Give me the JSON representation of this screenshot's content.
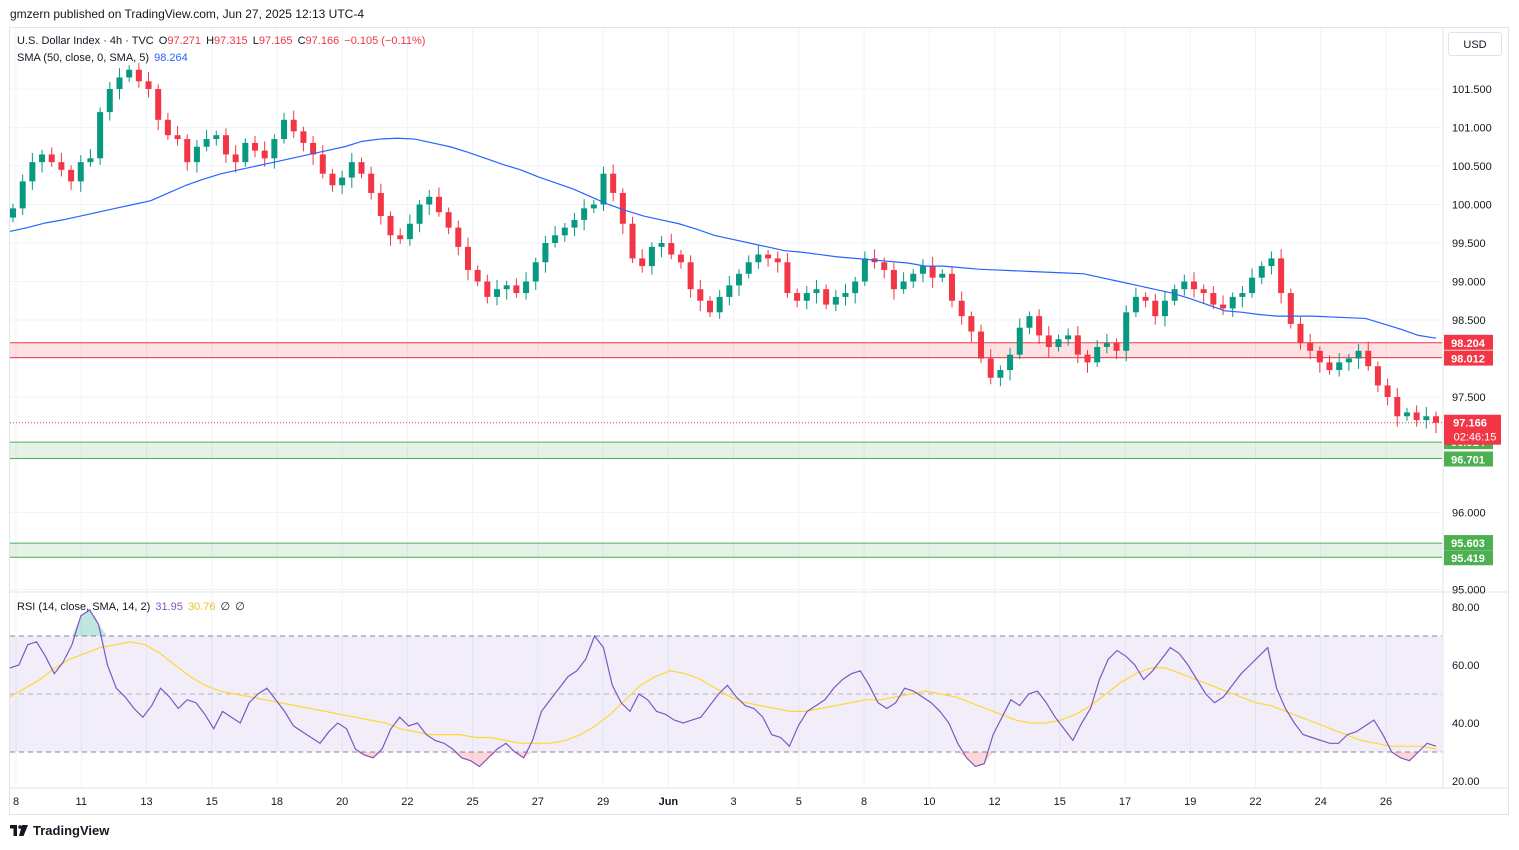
{
  "header": {
    "publisher_line": "gmzern published on TradingView.com, Jun 27, 2025 12:13 UTC-4"
  },
  "legend_main": {
    "symbol": "U.S. Dollar Index · 4h · TVC",
    "open_label": "O",
    "open": "97.271",
    "high_label": "H",
    "high": "97.315",
    "low_label": "L",
    "low": "97.165",
    "close_label": "C",
    "close": "97.166",
    "change": "−0.105 (−0.11%)"
  },
  "legend_sma": {
    "label": "SMA (50, close, 0, SMA, 5)",
    "value": "98.264"
  },
  "legend_rsi": {
    "label": "RSI (14, close, SMA, 14, 2)",
    "rsi_value": "31.95",
    "ma_value": "30.76",
    "extra1": "∅",
    "extra2": "∅"
  },
  "currency_button": "USD",
  "footer": {
    "brand": "TradingView"
  },
  "colors": {
    "up": "#089981",
    "down": "#f23645",
    "sma": "#2962ff",
    "rsi": "#7e57c2",
    "rsi_ma": "#fdd835",
    "resistance_zone": "#f23645",
    "support_zone": "#4caf50",
    "grid": "#f0f3fa"
  },
  "chart_data": [
    {
      "type": "candlestick",
      "title": "U.S. Dollar Index · 4h · TVC",
      "ylim": [
        95.0,
        101.9
      ],
      "y_ticks": [
        "101.500",
        "101.000",
        "100.500",
        "100.000",
        "99.500",
        "99.000",
        "98.500",
        "98.000",
        "97.500",
        "96.000",
        "95.000"
      ],
      "x_ticks": [
        "8",
        "11",
        "13",
        "15",
        "18",
        "20",
        "22",
        "25",
        "27",
        "29",
        "Jun",
        "3",
        "5",
        "8",
        "10",
        "12",
        "15",
        "17",
        "19",
        "22",
        "24",
        "26"
      ],
      "last_price": "97.166",
      "countdown": "02:46:15",
      "zones": [
        {
          "kind": "resistance",
          "top": 98.204,
          "bottom": 98.012,
          "top_label": "98.204",
          "bottom_label": "98.012"
        },
        {
          "kind": "support",
          "top": 96.914,
          "bottom": 96.701,
          "top_label": "96.914",
          "bottom_label": "96.701"
        },
        {
          "kind": "support",
          "top": 95.603,
          "bottom": 95.419,
          "top_label": "95.603",
          "bottom_label": "95.419"
        }
      ],
      "close_series": [
        99.95,
        100.3,
        100.55,
        100.65,
        100.55,
        100.45,
        100.3,
        100.55,
        100.6,
        101.2,
        101.5,
        101.65,
        101.75,
        101.6,
        101.5,
        101.1,
        100.9,
        100.85,
        100.55,
        100.75,
        100.85,
        100.9,
        100.65,
        100.55,
        100.8,
        100.7,
        100.6,
        100.85,
        101.1,
        100.95,
        100.8,
        100.65,
        100.4,
        100.25,
        100.35,
        100.55,
        100.4,
        100.15,
        99.85,
        99.6,
        99.55,
        99.75,
        100.0,
        100.1,
        99.9,
        99.7,
        99.45,
        99.15,
        99.0,
        98.8,
        98.9,
        98.95,
        98.85,
        99.0,
        99.25,
        99.5,
        99.6,
        99.7,
        99.8,
        99.95,
        100.0,
        100.4,
        100.15,
        99.75,
        99.3,
        99.2,
        99.45,
        99.5,
        99.35,
        99.25,
        98.9,
        98.75,
        98.6,
        98.8,
        98.95,
        99.1,
        99.25,
        99.35,
        99.3,
        99.25,
        98.85,
        98.75,
        98.85,
        98.9,
        98.7,
        98.8,
        98.85,
        99.0,
        99.3,
        99.25,
        99.15,
        98.9,
        99.0,
        99.1,
        99.2,
        99.05,
        99.1,
        98.75,
        98.55,
        98.35,
        98.0,
        97.75,
        97.85,
        98.05,
        98.4,
        98.55,
        98.3,
        98.15,
        98.25,
        98.3,
        98.05,
        97.95,
        98.15,
        98.2,
        98.1,
        98.6,
        98.8,
        98.75,
        98.55,
        98.75,
        98.9,
        99.0,
        98.9,
        98.85,
        98.7,
        98.65,
        98.8,
        98.85,
        99.05,
        99.2,
        99.3,
        98.85,
        98.45,
        98.2,
        98.1,
        97.95,
        97.85,
        97.95,
        98.0,
        98.1,
        97.9,
        97.65,
        97.5,
        97.25,
        97.3,
        97.2,
        97.25,
        97.166
      ],
      "sma_series": [
        99.65,
        99.7,
        99.76,
        99.8,
        99.85,
        99.9,
        99.95,
        100.0,
        100.05,
        100.15,
        100.25,
        100.33,
        100.4,
        100.45,
        100.5,
        100.55,
        100.6,
        100.65,
        100.7,
        100.75,
        100.82,
        100.85,
        100.86,
        100.85,
        100.8,
        100.75,
        100.68,
        100.6,
        100.52,
        100.45,
        100.36,
        100.28,
        100.2,
        100.1,
        100.0,
        99.92,
        99.85,
        99.8,
        99.75,
        99.68,
        99.6,
        99.55,
        99.5,
        99.45,
        99.4,
        99.38,
        99.35,
        99.32,
        99.3,
        99.28,
        99.26,
        99.24,
        99.2,
        99.2,
        99.18,
        99.16,
        99.15,
        99.14,
        99.13,
        99.12,
        99.11,
        99.1,
        99.05,
        99.0,
        98.95,
        98.9,
        98.85,
        98.78,
        98.7,
        98.62,
        98.6,
        98.57,
        98.55,
        98.55,
        98.55,
        98.54,
        98.53,
        98.52,
        98.45,
        98.38,
        98.3,
        98.264
      ]
    },
    {
      "type": "line",
      "title": "RSI (14, close, SMA, 14, 2)",
      "ylim": [
        20,
        80
      ],
      "y_ticks": [
        "80.00",
        "60.00",
        "40.00",
        "20.00"
      ],
      "bands": {
        "upper": 70,
        "middle": 50,
        "lower": 30
      },
      "rsi_series": [
        59,
        60,
        67,
        68,
        63,
        57,
        61,
        67,
        77,
        79,
        74,
        60,
        52,
        49,
        45,
        42,
        46,
        52,
        49,
        45,
        48,
        47,
        43,
        38,
        44,
        42,
        40,
        47,
        50,
        52,
        48,
        44,
        39,
        37,
        35,
        33,
        37,
        40,
        38,
        31,
        29,
        28,
        31,
        38,
        42,
        39,
        40,
        36,
        34,
        33,
        31,
        28,
        27,
        25,
        28,
        31,
        33,
        30,
        28,
        34,
        44,
        48,
        52,
        56,
        58,
        62,
        70,
        66,
        53,
        47,
        44,
        50,
        48,
        44,
        43,
        41,
        40,
        41,
        42,
        46,
        50,
        53,
        49,
        46,
        45,
        42,
        36,
        35,
        32,
        39,
        44,
        46,
        48,
        52,
        55,
        57,
        58,
        53,
        47,
        45,
        47,
        52,
        51,
        49,
        47,
        44,
        40,
        33,
        28,
        25,
        26,
        36,
        42,
        48,
        46,
        50,
        51,
        47,
        42,
        38,
        34,
        40,
        45,
        55,
        62,
        65,
        63,
        60,
        55,
        58,
        62,
        66,
        64,
        60,
        55,
        50,
        47,
        49,
        53,
        57,
        60,
        63,
        66,
        52,
        45,
        40,
        36,
        35,
        34,
        33,
        33,
        36,
        37,
        39,
        41,
        36,
        30,
        28,
        27,
        30,
        33,
        32
      ],
      "rsi_ma_series": [
        49,
        52,
        55,
        59,
        62,
        64,
        66,
        67,
        68,
        67,
        64,
        60,
        56,
        53,
        51,
        50,
        49,
        48,
        47,
        46,
        45,
        44,
        43,
        42,
        41,
        40,
        38,
        37,
        36,
        36,
        36,
        35,
        35,
        34,
        33,
        33,
        33,
        34,
        36,
        39,
        43,
        48,
        53,
        56,
        58,
        57,
        55,
        52,
        49,
        47,
        46,
        45,
        44,
        44,
        45,
        46,
        47,
        48,
        48,
        49,
        50,
        51,
        50,
        49,
        47,
        45,
        43,
        41,
        40,
        40,
        41,
        43,
        46,
        50,
        54,
        57,
        59,
        59,
        57,
        55,
        53,
        51,
        49,
        47,
        46,
        44,
        42,
        40,
        38,
        36,
        34,
        33,
        32,
        32,
        32,
        31
      ]
    }
  ]
}
